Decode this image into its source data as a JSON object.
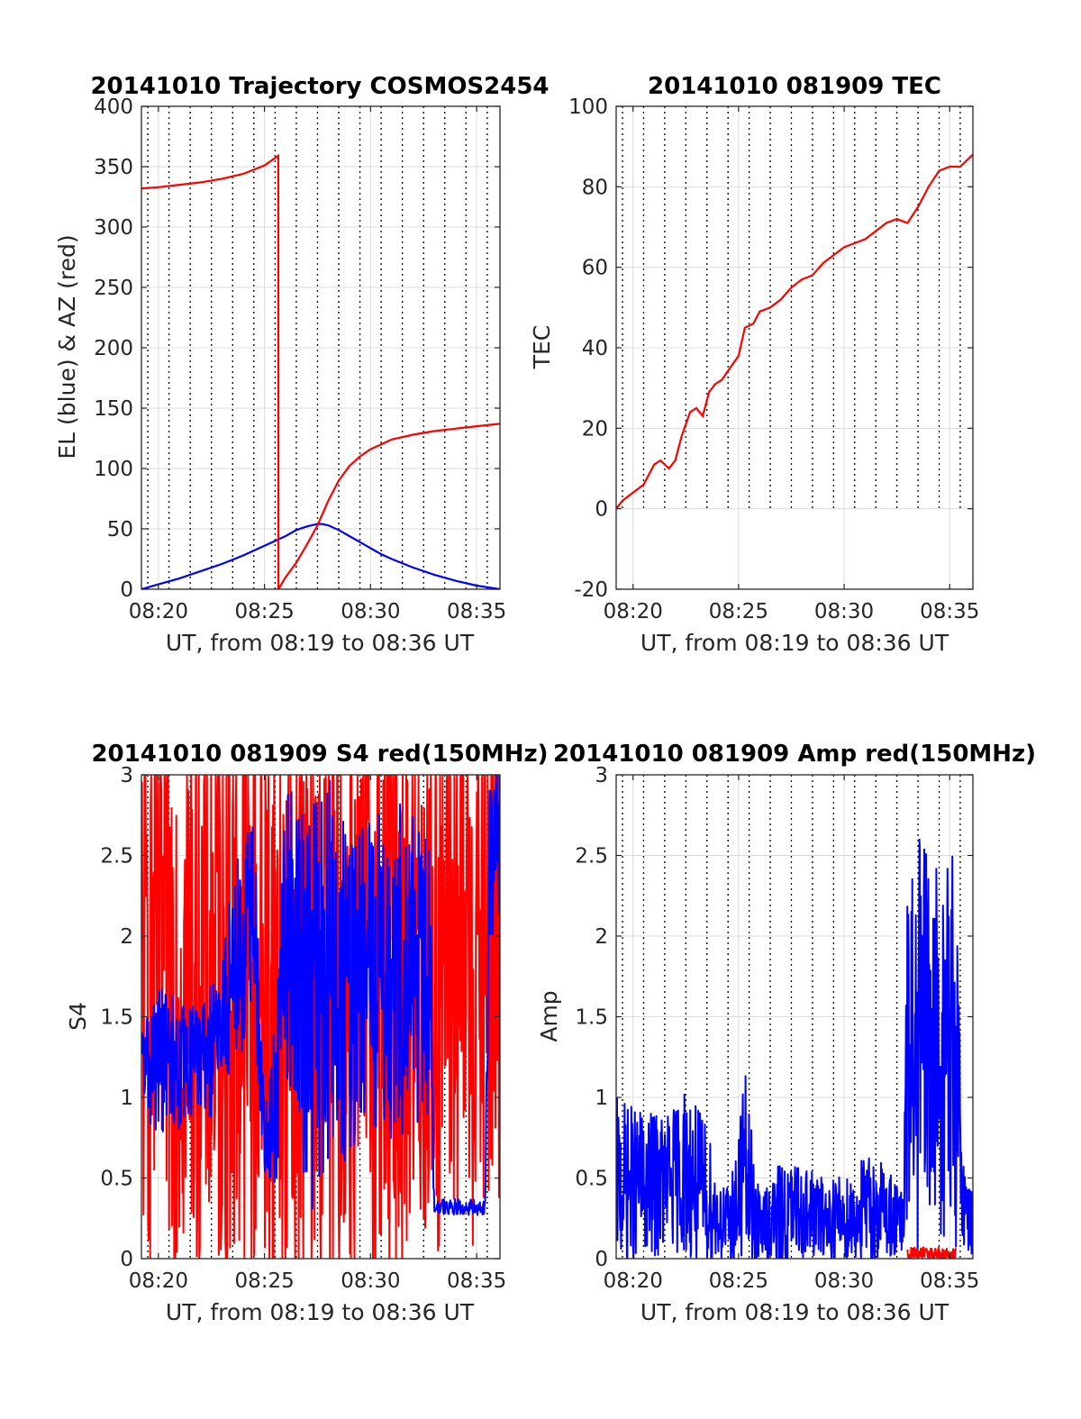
{
  "colors": {
    "el_series": "#0000ff",
    "az_series": "#ff0000",
    "axis": "#262626",
    "grid": "#dcdcdc",
    "minute_line": "#000000"
  },
  "chart_data": [
    {
      "id": "trajectory",
      "type": "line",
      "title": "20141010 Trajectory COSMOS2454",
      "xlabel": "UT, from 08:19 to 08:36 UT",
      "ylabel": "EL (blue) & AZ (red)",
      "xlim": [
        19.2,
        36.1
      ],
      "ylim": [
        0,
        400
      ],
      "xticks": [
        20,
        25,
        30,
        35
      ],
      "xtick_labels": [
        "08:20",
        "08:25",
        "08:30",
        "08:35"
      ],
      "yticks": [
        0,
        50,
        100,
        150,
        200,
        250,
        300,
        350,
        400
      ],
      "ytick_labels": [
        "0",
        "50",
        "100",
        "150",
        "200",
        "250",
        "300",
        "350",
        "400"
      ],
      "grid": true,
      "minute_lines": true,
      "series": [
        {
          "color": "blue",
          "x": [
            19.2,
            20,
            21,
            22,
            23,
            24,
            25,
            25.5,
            26,
            26.5,
            27,
            27.5,
            27.7,
            28,
            28.5,
            29,
            29.5,
            30,
            30.5,
            31,
            32,
            33,
            34,
            35,
            36.1
          ],
          "y": [
            0,
            4,
            9,
            15,
            21,
            28,
            36,
            40,
            44,
            49,
            52,
            54,
            54,
            53,
            49,
            44,
            39,
            34,
            29,
            25,
            18,
            12,
            7,
            3,
            0
          ]
        },
        {
          "color": "red",
          "x": [
            19.2,
            20,
            21,
            22,
            23,
            24,
            25,
            25.65,
            25.66,
            26,
            26.5,
            27,
            27.5,
            28,
            28.5,
            29,
            29.5,
            30,
            30.5,
            31,
            32,
            33,
            34,
            35,
            36.1
          ],
          "y": [
            332,
            333,
            335,
            337,
            340,
            344,
            351,
            359,
            0,
            10,
            22,
            37,
            53,
            73,
            90,
            102,
            110,
            116,
            120,
            124,
            128,
            131,
            133,
            135,
            137
          ]
        }
      ]
    },
    {
      "id": "tec",
      "type": "line",
      "title": "20141010 081909 TEC",
      "xlabel": "UT, from 08:19 to 08:36 UT",
      "ylabel": "TEC",
      "xlim": [
        19.2,
        36.1
      ],
      "ylim": [
        -20,
        100
      ],
      "xticks": [
        20,
        25,
        30,
        35
      ],
      "xtick_labels": [
        "08:20",
        "08:25",
        "08:30",
        "08:35"
      ],
      "yticks": [
        -20,
        0,
        20,
        40,
        60,
        80,
        100
      ],
      "ytick_labels": [
        "-20",
        "0",
        "20",
        "40",
        "60",
        "80",
        "100"
      ],
      "grid": true,
      "minute_lines": true,
      "minute_lines_range": [
        0,
        100
      ],
      "series": [
        {
          "color": "red",
          "x": [
            19.2,
            19.5,
            20,
            20.5,
            21,
            21.3,
            21.7,
            22,
            22.3,
            22.7,
            23,
            23.3,
            23.6,
            23.9,
            24.2,
            24.6,
            25,
            25.3,
            25.7,
            26,
            26.5,
            27,
            27.5,
            28,
            28.5,
            29,
            29.5,
            30,
            30.5,
            31,
            31.5,
            32,
            32.5,
            33,
            33.5,
            34,
            34.5,
            35,
            35.5,
            36.1
          ],
          "y": [
            0,
            2,
            4,
            6,
            11,
            12,
            10,
            12,
            18,
            24,
            25,
            23,
            29,
            31,
            32,
            35,
            38,
            45,
            46,
            49,
            50,
            52,
            55,
            57,
            58,
            61,
            63,
            65,
            66,
            67,
            69,
            71,
            72,
            71,
            75,
            80,
            84,
            85,
            85,
            88
          ]
        }
      ]
    },
    {
      "id": "s4",
      "type": "line",
      "title": "20141010 081909 S4 red(150MHz)",
      "xlabel": "UT, from 08:19 to 08:36 UT",
      "ylabel": "S4",
      "xlim": [
        19.2,
        36.1
      ],
      "ylim": [
        0,
        3
      ],
      "xticks": [
        20,
        25,
        30,
        35
      ],
      "xtick_labels": [
        "08:20",
        "08:25",
        "08:30",
        "08:35"
      ],
      "yticks": [
        0,
        0.5,
        1,
        1.5,
        2,
        2.5,
        3
      ],
      "ytick_labels": [
        "0",
        "0.5",
        "1",
        "1.5",
        "2",
        "2.5",
        "3"
      ],
      "grid": true,
      "minute_lines": true,
      "noise_series": [
        {
          "color": "red",
          "x": [
            19.2,
            20,
            21,
            22,
            23,
            24,
            25,
            26,
            27,
            28,
            29,
            30,
            31,
            32,
            33,
            34,
            35,
            36.1
          ],
          "base": [
            1.8,
            1.8,
            1.8,
            1.8,
            1.7,
            1.7,
            1.7,
            1.6,
            1.6,
            1.6,
            1.7,
            1.7,
            1.7,
            1.8,
            1.8,
            1.9,
            1.9,
            1.9
          ],
          "amplitude": [
            1.9,
            1.9,
            1.9,
            1.9,
            1.9,
            1.9,
            1.9,
            1.9,
            1.9,
            1.9,
            1.9,
            1.9,
            1.9,
            1.9,
            1.9,
            1.9,
            1.9,
            1.9
          ],
          "samples": 700
        },
        {
          "color": "blue",
          "x": [
            19.2,
            20,
            21,
            22,
            22.8,
            23.5,
            24.5,
            25,
            25.5,
            26,
            26.5,
            27,
            28,
            29,
            30,
            31,
            32,
            32.8,
            33,
            34,
            35,
            35.4,
            35.6,
            36.1
          ],
          "base": [
            1.2,
            1.25,
            1.2,
            1.25,
            1.3,
            1.8,
            2.1,
            0.7,
            0.9,
            2.0,
            2.0,
            1.5,
            1.8,
            1.6,
            1.8,
            1.8,
            1.8,
            1.7,
            0.32,
            0.32,
            0.32,
            0.32,
            2.4,
            2.6
          ],
          "amplitude": [
            0.3,
            0.5,
            0.4,
            0.3,
            0.5,
            0.6,
            0.7,
            0.2,
            0.6,
            0.9,
            1.0,
            1.3,
            1.2,
            1.0,
            1.0,
            1.1,
            1.0,
            1.0,
            0.05,
            0.05,
            0.05,
            0.05,
            0.5,
            0.5
          ],
          "samples": 700
        }
      ]
    },
    {
      "id": "amp",
      "type": "line",
      "title": "20141010 081909 Amp red(150MHz)",
      "xlabel": "UT, from 08:19 to 08:36 UT",
      "ylabel": "Amp",
      "xlim": [
        19.2,
        36.1
      ],
      "ylim": [
        0,
        3
      ],
      "xticks": [
        20,
        25,
        30,
        35
      ],
      "xtick_labels": [
        "08:20",
        "08:25",
        "08:30",
        "08:35"
      ],
      "yticks": [
        0,
        0.5,
        1,
        1.5,
        2,
        2.5,
        3
      ],
      "ytick_labels": [
        "0",
        "0.5",
        "1",
        "1.5",
        "2",
        "2.5",
        "3"
      ],
      "grid": true,
      "minute_lines": true,
      "noise_series": [
        {
          "color": "blue",
          "x": [
            19.2,
            20,
            21,
            22,
            22.5,
            23,
            23.5,
            24,
            24.5,
            25,
            25.2,
            25.5,
            26,
            27,
            28,
            29,
            30,
            31,
            32,
            32.8,
            33.0,
            33.5,
            34,
            34.5,
            35,
            35.3,
            35.6,
            36.1
          ],
          "base": [
            0.5,
            0.45,
            0.45,
            0.5,
            0.55,
            0.45,
            0.4,
            0.25,
            0.2,
            0.35,
            0.6,
            0.4,
            0.2,
            0.25,
            0.3,
            0.25,
            0.25,
            0.3,
            0.3,
            0.2,
            1.2,
            1.3,
            1.3,
            1.25,
            1.3,
            1.2,
            0.4,
            0.2
          ],
          "amplitude": [
            0.5,
            0.5,
            0.45,
            0.45,
            0.55,
            0.5,
            0.45,
            0.25,
            0.25,
            0.4,
            0.7,
            0.5,
            0.2,
            0.35,
            0.3,
            0.25,
            0.3,
            0.35,
            0.3,
            0.2,
            1.1,
            1.4,
            1.2,
            1.2,
            1.4,
            1.2,
            0.3,
            0.2
          ],
          "samples": 800
        },
        {
          "color": "red",
          "x": [
            33.0,
            33.5,
            34,
            34.5,
            35,
            35.3
          ],
          "base": [
            0.03,
            0.03,
            0.03,
            0.03,
            0.03,
            0.03
          ],
          "amplitude": [
            0.04,
            0.04,
            0.04,
            0.04,
            0.04,
            0.04
          ],
          "samples": 120
        }
      ]
    }
  ]
}
